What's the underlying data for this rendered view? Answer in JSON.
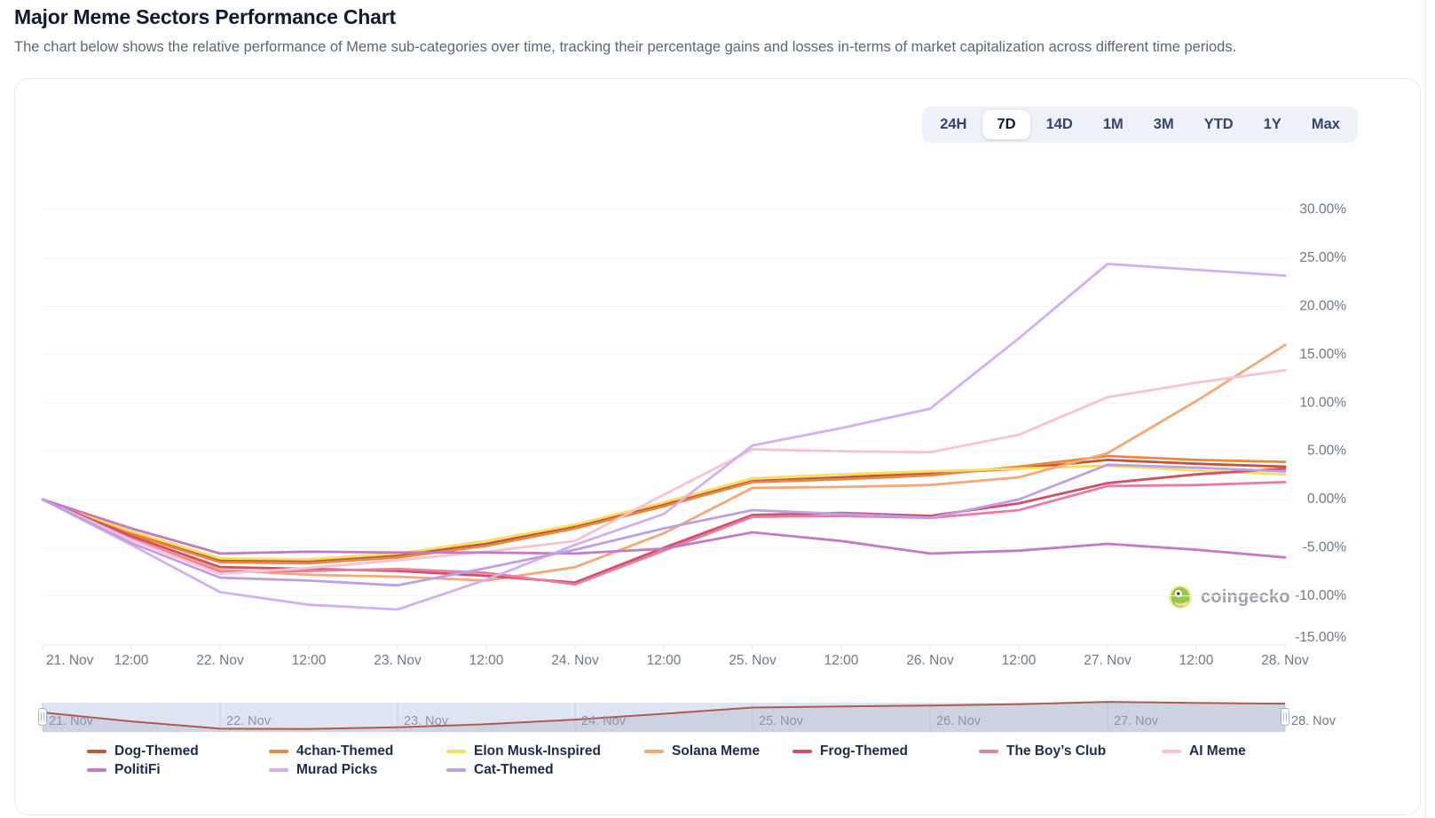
{
  "page": {
    "title": "Major Meme Sectors Performance Chart",
    "subtitle": "The chart below shows the relative performance of Meme sub-categories over time, tracking their percentage gains and losses in-terms of market capitalization across different time periods."
  },
  "time_range_tabs": {
    "options": [
      "24H",
      "7D",
      "14D",
      "1M",
      "3M",
      "YTD",
      "1Y",
      "Max"
    ],
    "active": "7D"
  },
  "watermark": {
    "label": "coingecko"
  },
  "chart_data": {
    "type": "line",
    "title": "Major Meme Sectors Performance Chart",
    "x_tick_labels": [
      "21. Nov",
      "12:00",
      "22. Nov",
      "12:00",
      "23. Nov",
      "12:00",
      "24. Nov",
      "12:00",
      "25. Nov",
      "12:00",
      "26. Nov",
      "12:00",
      "27. Nov",
      "12:00",
      "28. Nov"
    ],
    "y_tick_labels": [
      "30.00%",
      "25.00%",
      "20.00%",
      "15.00%",
      "10.00%",
      "5.00%",
      "0.00%",
      "-5.00%",
      "-10.00%",
      "-15.00%"
    ],
    "ylim": [
      -15,
      30
    ],
    "value_unit": "%",
    "grid": true,
    "legend_position": "bottom",
    "series": [
      {
        "name": "Dog-Themed",
        "color": "#C0553A",
        "values": [
          0,
          -3.5,
          -6.3,
          -6.4,
          -5.8,
          -4.6,
          -2.8,
          -0.5,
          1.9,
          2.3,
          2.7,
          3.2,
          4.1,
          3.7,
          3.4
        ]
      },
      {
        "name": "4chan-Themed",
        "color": "#E8883C",
        "values": [
          0,
          -3.6,
          -6.5,
          -6.6,
          -6.0,
          -4.8,
          -3.0,
          -0.7,
          1.8,
          2.1,
          2.5,
          3.4,
          4.5,
          4.1,
          3.9
        ]
      },
      {
        "name": "Elon Musk-Inspired",
        "color": "#F6DE5E",
        "values": [
          0,
          -3.3,
          -6.1,
          -6.2,
          -5.6,
          -4.3,
          -2.6,
          -0.3,
          2.2,
          2.6,
          2.9,
          3.2,
          3.5,
          3.0,
          2.6
        ]
      },
      {
        "name": "Solana Meme",
        "color": "#F5A873",
        "values": [
          0,
          -4.0,
          -7.3,
          -7.8,
          -8.0,
          -8.4,
          -7.0,
          -3.5,
          1.2,
          1.3,
          1.5,
          2.3,
          4.8,
          10.2,
          16.0
        ]
      },
      {
        "name": "Frog-Themed",
        "color": "#D24F66",
        "values": [
          0,
          -3.8,
          -7.0,
          -7.2,
          -7.4,
          -7.9,
          -8.6,
          -5.0,
          -1.6,
          -1.4,
          -1.7,
          -0.4,
          1.7,
          2.6,
          3.2
        ]
      },
      {
        "name": "The Boy’s Club",
        "color": "#E87CA6",
        "values": [
          0,
          -4.1,
          -7.5,
          -7.4,
          -7.2,
          -7.6,
          -8.8,
          -5.3,
          -1.8,
          -1.7,
          -1.9,
          -1.1,
          1.4,
          1.5,
          1.8
        ]
      },
      {
        "name": "AI Meme",
        "color": "#F8C3D0",
        "values": [
          0,
          -4.2,
          -7.7,
          -7.1,
          -6.3,
          -5.4,
          -4.3,
          0.5,
          5.2,
          5.0,
          4.9,
          6.7,
          10.6,
          12.1,
          13.4
        ]
      },
      {
        "name": "PolitiFi",
        "color": "#C678C8",
        "values": [
          0,
          -3.0,
          -5.6,
          -5.4,
          -5.5,
          -5.5,
          -5.6,
          -5.1,
          -3.4,
          -4.3,
          -5.6,
          -5.3,
          -4.6,
          -5.2,
          -6.0
        ]
      },
      {
        "name": "Murad Picks",
        "color": "#D5AEEF",
        "values": [
          0,
          -4.7,
          -9.6,
          -10.9,
          -11.4,
          -8.3,
          -4.7,
          -1.5,
          5.6,
          7.4,
          9.4,
          16.7,
          24.4,
          23.8,
          23.2
        ]
      },
      {
        "name": "Cat-Themed",
        "color": "#BD9FE8",
        "values": [
          0,
          -4.5,
          -8.1,
          -8.4,
          -8.9,
          -7.1,
          -5.2,
          -3.0,
          -1.1,
          -1.5,
          -1.9,
          0.0,
          3.6,
          3.3,
          2.9
        ]
      }
    ],
    "navigator": {
      "date_labels": [
        "21. Nov",
        "22. Nov",
        "23. Nov",
        "24. Nov",
        "25. Nov",
        "26. Nov",
        "27. Nov",
        "28. Nov"
      ],
      "preview_series": "Dog-Themed",
      "preview_color": "#B15A4B"
    }
  }
}
